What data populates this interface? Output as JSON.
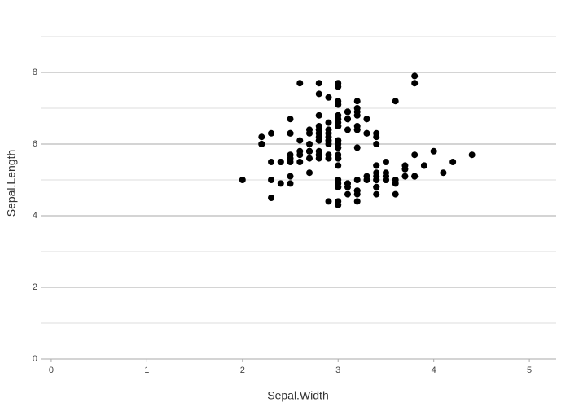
{
  "chart_data": {
    "type": "scatter",
    "x_label": "Sepal.Width",
    "y_label": "Sepal.Length",
    "color": "#000000",
    "grid": true,
    "xlim": [
      -0.11,
      5.28
    ],
    "ylim": [
      0,
      9
    ],
    "xticks": [
      0,
      1,
      2,
      3,
      4,
      5
    ],
    "yticks": [
      0,
      2,
      4,
      6,
      8
    ],
    "x": [
      3.5,
      3.0,
      3.2,
      3.1,
      3.6,
      3.9,
      3.4,
      3.4,
      2.9,
      3.1,
      3.7,
      3.4,
      3.0,
      3.0,
      4.0,
      4.4,
      3.9,
      3.5,
      3.8,
      3.8,
      3.4,
      3.7,
      3.6,
      3.3,
      3.4,
      3.0,
      3.4,
      3.5,
      3.4,
      3.2,
      3.1,
      3.4,
      4.1,
      4.2,
      3.1,
      3.2,
      3.5,
      3.6,
      3.0,
      3.4,
      3.5,
      2.3,
      3.2,
      3.5,
      3.8,
      3.0,
      3.8,
      3.2,
      3.7,
      3.3,
      3.2,
      3.2,
      3.1,
      2.3,
      2.8,
      2.8,
      3.3,
      2.4,
      2.9,
      2.7,
      2.0,
      3.0,
      2.2,
      2.9,
      2.9,
      3.1,
      3.0,
      2.7,
      2.2,
      2.5,
      3.2,
      2.8,
      2.5,
      2.8,
      2.9,
      3.0,
      2.8,
      3.0,
      2.9,
      2.6,
      2.4,
      2.4,
      2.7,
      2.7,
      3.0,
      3.4,
      3.1,
      2.3,
      3.0,
      2.5,
      2.6,
      3.0,
      2.6,
      2.3,
      2.7,
      3.0,
      2.9,
      2.9,
      2.5,
      2.8,
      3.3,
      2.7,
      3.0,
      2.9,
      3.0,
      3.0,
      2.5,
      2.9,
      2.5,
      3.6,
      3.2,
      2.7,
      3.0,
      2.5,
      2.8,
      3.2,
      3.0,
      3.8,
      2.6,
      2.2,
      3.2,
      2.8,
      2.8,
      2.7,
      3.3,
      3.2,
      2.8,
      3.0,
      2.8,
      3.0,
      2.8,
      3.8,
      2.8,
      2.8,
      2.6,
      3.0,
      3.4,
      3.1,
      3.0,
      3.1,
      3.1,
      3.1,
      2.7,
      3.2,
      3.3,
      3.0,
      2.5,
      3.0,
      3.4,
      3.0
    ],
    "values": [
      5.1,
      4.9,
      4.7,
      4.6,
      5.0,
      5.4,
      4.6,
      5.0,
      4.4,
      4.9,
      5.4,
      4.8,
      4.8,
      4.3,
      5.8,
      5.7,
      5.4,
      5.1,
      5.7,
      5.1,
      5.4,
      5.1,
      4.6,
      5.1,
      4.8,
      5.0,
      5.0,
      5.2,
      5.2,
      4.7,
      4.8,
      5.4,
      5.2,
      5.5,
      4.9,
      5.0,
      5.5,
      4.9,
      4.4,
      5.1,
      5.0,
      4.5,
      4.4,
      5.0,
      5.1,
      4.8,
      5.1,
      4.6,
      5.3,
      5.0,
      7.0,
      6.4,
      6.9,
      5.5,
      6.5,
      5.7,
      6.3,
      4.9,
      6.6,
      5.2,
      5.0,
      5.9,
      6.0,
      6.1,
      5.6,
      6.7,
      5.6,
      5.8,
      6.2,
      5.6,
      5.9,
      6.1,
      6.3,
      6.1,
      6.4,
      6.6,
      6.8,
      6.7,
      6.0,
      5.7,
      5.5,
      5.5,
      5.8,
      6.0,
      5.4,
      6.0,
      6.7,
      6.3,
      5.6,
      5.5,
      5.5,
      6.1,
      5.8,
      5.0,
      5.6,
      5.7,
      5.7,
      6.2,
      5.1,
      5.7,
      6.3,
      5.8,
      7.1,
      6.3,
      6.5,
      7.6,
      4.9,
      7.3,
      6.7,
      7.2,
      6.5,
      6.4,
      6.8,
      5.7,
      5.8,
      6.4,
      6.5,
      7.7,
      7.7,
      6.0,
      6.9,
      5.6,
      7.7,
      6.3,
      6.7,
      7.2,
      6.2,
      6.1,
      6.4,
      7.2,
      7.4,
      7.9,
      6.4,
      6.3,
      6.1,
      7.7,
      6.3,
      6.4,
      6.0,
      6.9,
      6.7,
      6.9,
      5.8,
      6.8,
      6.7,
      6.7,
      6.3,
      6.5,
      6.2,
      5.9
    ]
  }
}
